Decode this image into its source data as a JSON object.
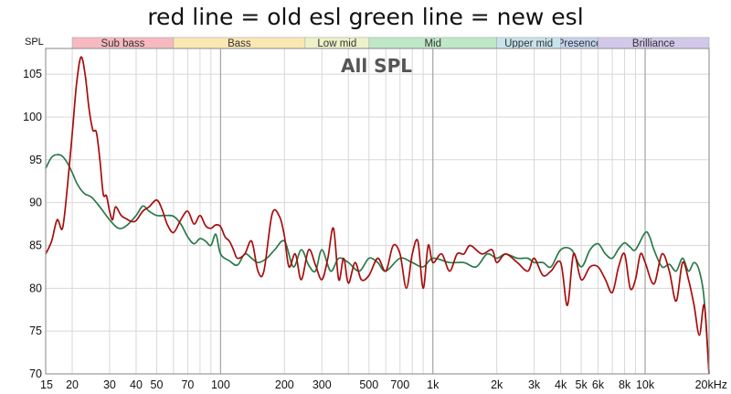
{
  "chart_data": {
    "type": "line",
    "title": "red line = old esl green line = new esl",
    "inner_title": "All SPL",
    "ylabel": "SPL",
    "x_scale": "log",
    "xlim": [
      15,
      20000
    ],
    "ylim": [
      70,
      108
    ],
    "x_tick_labels": [
      {
        "v": 15,
        "t": "15"
      },
      {
        "v": 20,
        "t": "20"
      },
      {
        "v": 30,
        "t": "30"
      },
      {
        "v": 40,
        "t": "40"
      },
      {
        "v": 50,
        "t": "50"
      },
      {
        "v": 70,
        "t": "70"
      },
      {
        "v": 100,
        "t": "100"
      },
      {
        "v": 200,
        "t": "200"
      },
      {
        "v": 300,
        "t": "300"
      },
      {
        "v": 500,
        "t": "500"
      },
      {
        "v": 700,
        "t": "700"
      },
      {
        "v": 1000,
        "t": "1k"
      },
      {
        "v": 2000,
        "t": "2k"
      },
      {
        "v": 3000,
        "t": "3k"
      },
      {
        "v": 4000,
        "t": "4k"
      },
      {
        "v": 5000,
        "t": "5k"
      },
      {
        "v": 6000,
        "t": "6k"
      },
      {
        "v": 8000,
        "t": "8k"
      },
      {
        "v": 10000,
        "t": "10k"
      },
      {
        "v": 20000,
        "t": "20kHz"
      }
    ],
    "y_ticks": [
      70,
      75,
      80,
      85,
      90,
      95,
      100,
      105
    ],
    "bands": [
      {
        "label": "Sub bass",
        "from": 20,
        "to": 60,
        "color": "#f7b9c0"
      },
      {
        "label": "Bass",
        "from": 60,
        "to": 250,
        "color": "#fbe7b2"
      },
      {
        "label": "Low mid",
        "from": 250,
        "to": 500,
        "color": "#eef2c8"
      },
      {
        "label": "Mid",
        "from": 500,
        "to": 2000,
        "color": "#bfe8c6"
      },
      {
        "label": "Upper mid",
        "from": 2000,
        "to": 4000,
        "color": "#c8e3ec"
      },
      {
        "label": "Presence",
        "from": 4000,
        "to": 6000,
        "color": "#c2d4ee"
      },
      {
        "label": "Brilliance",
        "from": 6000,
        "to": 20000,
        "color": "#d2c8ea"
      }
    ],
    "series": [
      {
        "color": "#a80d0d",
        "x": [
          15,
          16,
          17,
          18,
          19,
          20,
          21,
          22,
          23,
          24,
          25,
          26,
          27,
          28,
          29,
          30,
          31,
          32,
          34,
          36,
          38,
          40,
          43,
          46,
          50,
          53,
          56,
          60,
          65,
          70,
          75,
          80,
          85,
          90,
          95,
          100,
          105,
          110,
          115,
          120,
          130,
          140,
          150,
          160,
          175,
          190,
          200,
          210,
          225,
          240,
          260,
          280,
          300,
          320,
          340,
          360,
          380,
          400,
          430,
          460,
          500,
          550,
          600,
          650,
          700,
          750,
          800,
          850,
          900,
          950,
          1000,
          1100,
          1200,
          1300,
          1400,
          1500,
          1700,
          1900,
          2000,
          2200,
          2500,
          2800,
          3000,
          3300,
          3600,
          4000,
          4300,
          4600,
          5000,
          5500,
          6000,
          6500,
          7000,
          7500,
          8000,
          8500,
          9000,
          9500,
          10000,
          11000,
          12000,
          13000,
          14000,
          15000,
          16000,
          17000,
          18000,
          19000,
          20000
        ],
        "y": [
          84,
          85.5,
          88,
          87,
          92,
          98,
          104,
          107,
          105,
          101,
          98.5,
          98.2,
          95,
          91,
          90.8,
          89,
          88,
          89.5,
          88.5,
          88.1,
          87.8,
          87.9,
          89,
          89.5,
          90.3,
          89.2,
          87.5,
          86.5,
          88,
          89,
          87.5,
          88.5,
          87.3,
          87,
          87.4,
          87.2,
          86,
          85.5,
          84.5,
          83.5,
          84,
          85.5,
          82,
          82,
          88.7,
          88.3,
          86,
          82.5,
          84,
          81,
          84.5,
          82.7,
          81,
          83.5,
          87,
          81,
          83.5,
          80.6,
          83,
          81,
          81.5,
          83.5,
          82,
          85,
          84,
          80,
          84,
          85.5,
          80,
          85,
          83,
          84,
          82,
          84,
          84,
          85,
          84,
          84.5,
          83,
          84,
          83,
          82,
          83.5,
          81.5,
          82,
          83,
          78,
          84,
          81,
          82.5,
          82.5,
          81,
          79.5,
          82.5,
          84,
          80,
          81,
          84,
          83,
          80.5,
          84,
          82,
          78.5,
          83,
          81,
          78,
          74.5,
          78,
          70
        ]
      },
      {
        "color": "#2a7a4a",
        "x": [
          15,
          16,
          17,
          18,
          19,
          20,
          21,
          22,
          23,
          24,
          25,
          27,
          30,
          33,
          36,
          40,
          43,
          46,
          50,
          55,
          60,
          65,
          70,
          75,
          80,
          85,
          90,
          95,
          100,
          110,
          120,
          130,
          140,
          150,
          165,
          180,
          200,
          220,
          240,
          260,
          280,
          300,
          330,
          360,
          400,
          450,
          500,
          550,
          600,
          700,
          800,
          900,
          1000,
          1200,
          1400,
          1600,
          1800,
          2000,
          2200,
          2500,
          2800,
          3000,
          3300,
          3600,
          4000,
          4500,
          5000,
          5500,
          6000,
          6500,
          7000,
          7500,
          8000,
          8500,
          9000,
          10000,
          10500,
          11000,
          12000,
          13000,
          14000,
          15000,
          16000,
          17000,
          18000,
          19000,
          20000
        ],
        "y": [
          94,
          95.3,
          95.6,
          95.4,
          94.6,
          93.5,
          92.3,
          91.5,
          91,
          90.8,
          90.5,
          89.5,
          88,
          87,
          87.3,
          88.5,
          89.6,
          89,
          88.5,
          88.5,
          88.4,
          87.5,
          86,
          85.2,
          85.8,
          85.5,
          85,
          86.3,
          84,
          83.2,
          82.7,
          84,
          83.5,
          83,
          83.5,
          84.5,
          85.5,
          82.5,
          84.5,
          82.7,
          82,
          84.5,
          82,
          83.5,
          83,
          82,
          83.5,
          83,
          82,
          83.5,
          83,
          82.5,
          83.5,
          83,
          83,
          82.5,
          84,
          83.5,
          84,
          83.5,
          83.5,
          83,
          83,
          82.5,
          84.5,
          84.5,
          82.5,
          84.5,
          85.2,
          84,
          83.5,
          84.6,
          85.3,
          84.8,
          84.5,
          86.5,
          86,
          84.5,
          82.5,
          82.8,
          82,
          83.5,
          82,
          83,
          82,
          78.5,
          70
        ]
      }
    ]
  }
}
